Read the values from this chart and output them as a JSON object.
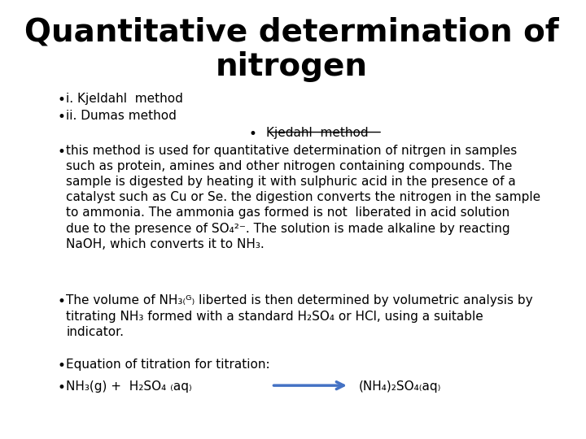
{
  "title_line1": "Quantitative determination of",
  "title_line2": "nitrogen",
  "background_color": "#ffffff",
  "text_color": "#000000",
  "title_fontsize": 28,
  "body_fontsize": 11,
  "bullet1": "i. Kjeldahl  method",
  "bullet2": "ii. Dumas method",
  "sub_bullet": "Kjedahl  method",
  "font_family": "DejaVu Sans",
  "arrow_color": "#4472c4"
}
